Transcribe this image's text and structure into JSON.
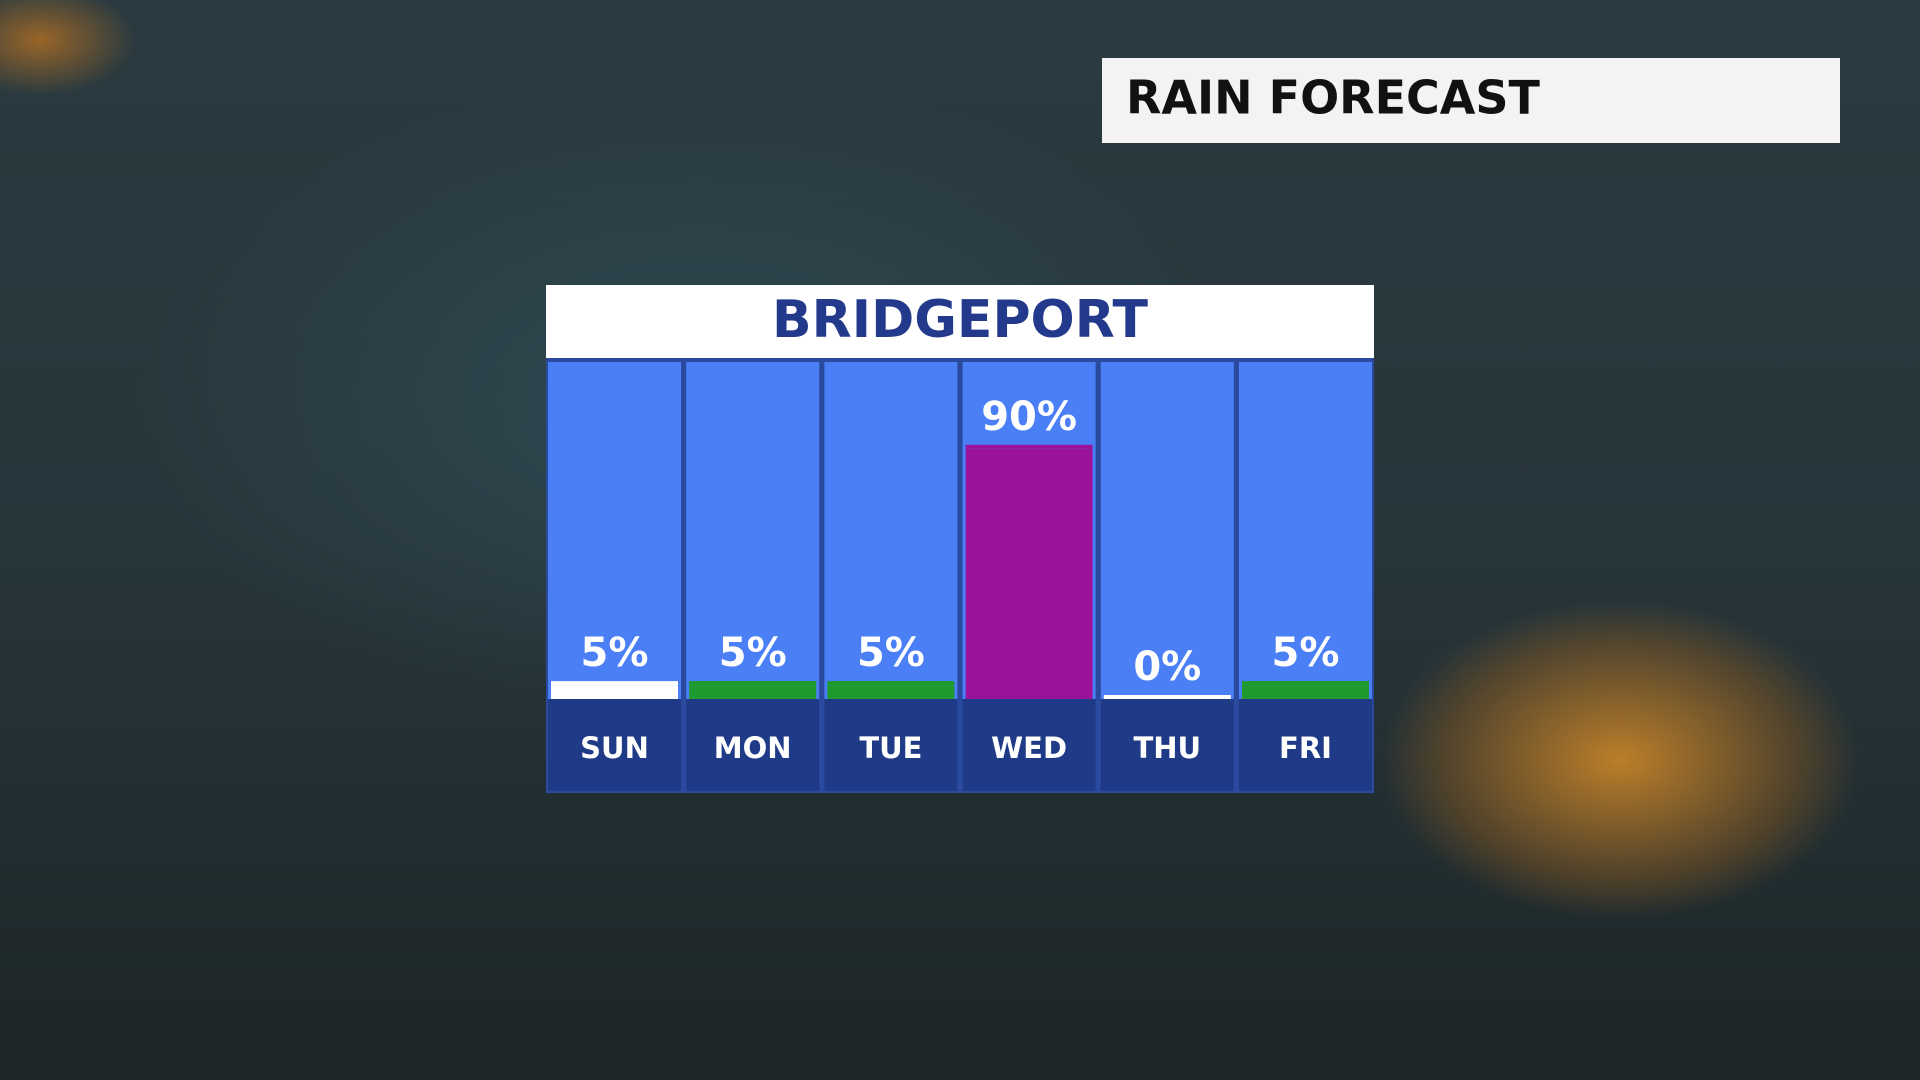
{
  "chart_data": {
    "type": "bar",
    "title": "RAIN FORECAST",
    "subtitle": "BRIDGEPORT",
    "categories": [
      "SUN",
      "MON",
      "TUE",
      "WED",
      "THU",
      "FRI"
    ],
    "values": [
      5,
      5,
      5,
      90,
      0,
      5
    ],
    "value_labels": [
      "5%",
      "5%",
      "5%",
      "90%",
      "0%",
      "5%"
    ],
    "colors": [
      "#ffffff",
      "#1f9a2e",
      "#1f9a2e",
      "#9a139a",
      "#ffffff",
      "#1f9a2e"
    ],
    "ylim": [
      0,
      100
    ]
  }
}
